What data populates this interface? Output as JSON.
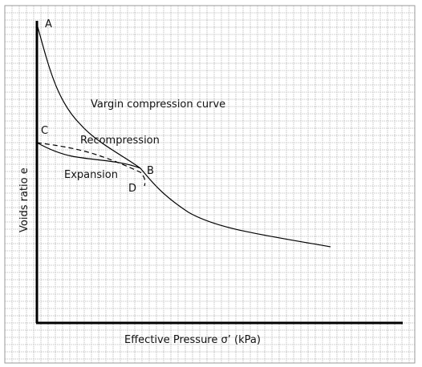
{
  "chart_data": {
    "type": "line",
    "title": "",
    "xlabel": "Effective Pressure σ’ (kPa)",
    "ylabel": "Voids ratio e",
    "grid": true,
    "colors": {
      "grid": "#b8b8b8",
      "grid_frame": "#9a9a9a",
      "axis": "#000000",
      "curve": "#000000"
    },
    "curves": [
      {
        "name": "virgin-compression",
        "style": "solid"
      },
      {
        "name": "expansion",
        "style": "solid"
      },
      {
        "name": "recompression",
        "style": "dashed"
      }
    ],
    "annotations": {
      "curve_labels": [
        "Vargin compression curve",
        "Recompression",
        "Expansion"
      ],
      "points": [
        "A",
        "B",
        "C",
        "D"
      ]
    }
  }
}
